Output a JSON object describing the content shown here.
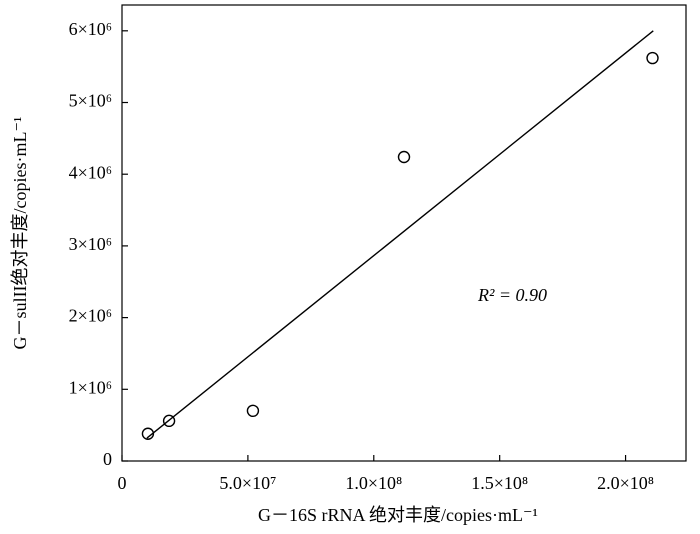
{
  "chart_data": {
    "type": "scatter",
    "x_label": "G－16S rRNA 绝对丰度/copies·mL⁻¹",
    "y_label": "G－sulII绝对丰度/copies·mL⁻¹",
    "annotation": "R² = 0.90",
    "x": [
      10300000,
      18700000,
      52000000,
      112000000,
      210700000
    ],
    "values": [
      380000,
      560000,
      700000,
      4240000,
      5620000
    ],
    "color": "#000000",
    "fit_line": {
      "x": [
        9900000,
        211000000
      ],
      "values": [
        320000,
        6000000
      ]
    },
    "xlim": [
      0,
      224000000
    ],
    "ylim": [
      0,
      6360000
    ],
    "xticks": [
      0,
      {
        "value": 50000000,
        "label": "5.0×10⁷"
      },
      {
        "value": 100000000,
        "label": "1.0×10⁸"
      },
      {
        "value": 150000000,
        "label": "1.5×10⁸"
      },
      {
        "value": 200000000,
        "label": "2.0×10⁸"
      }
    ],
    "yticks": [
      0,
      {
        "value": 1000000,
        "label": "1×10⁶"
      },
      {
        "value": 2000000,
        "label": "2×10⁶"
      },
      {
        "value": 3000000,
        "label": "3×10⁶"
      },
      {
        "value": 4000000,
        "label": "4×10⁶"
      },
      {
        "value": 5000000,
        "label": "5×10⁶"
      },
      {
        "value": 6000000,
        "label": "6×10⁶"
      }
    ],
    "grid": false
  }
}
